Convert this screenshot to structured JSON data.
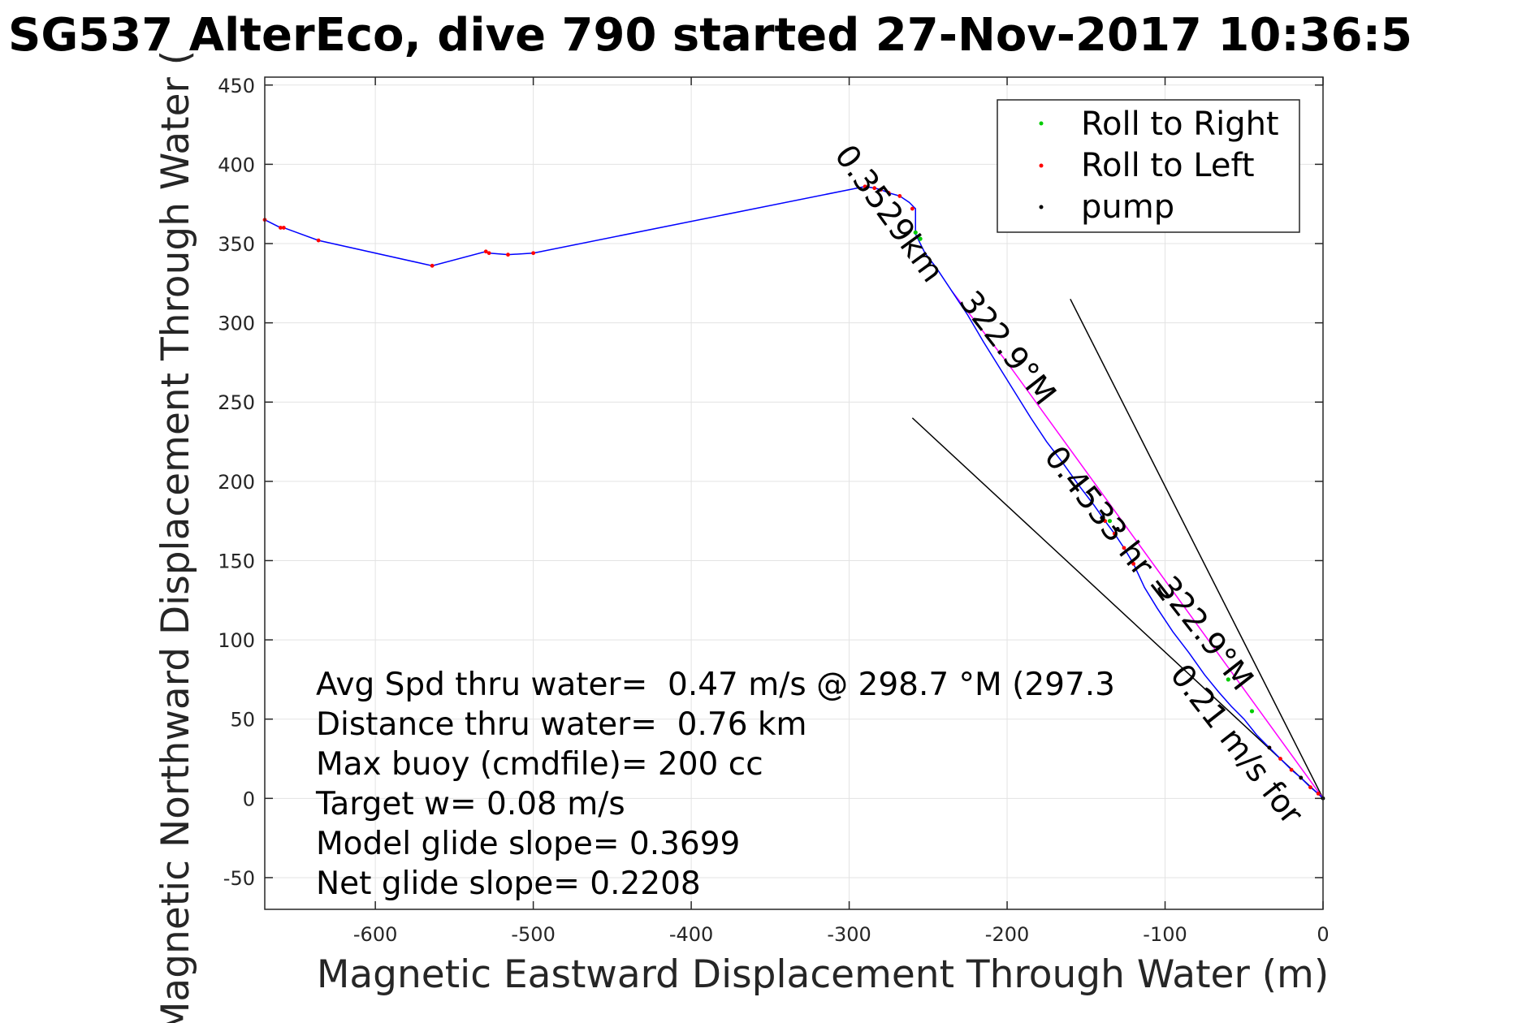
{
  "chart_data": {
    "type": "line",
    "title": "SG537 AlterEco, dive 790 started 27-Nov-2017 10:36:5",
    "xlabel": "Magnetic Eastward Displacement Through Water (m)",
    "ylabel": "Magnetic Northward Displacement Through Water (",
    "xlim": [
      -670,
      0
    ],
    "ylim": [
      -70,
      455
    ],
    "xticks": [
      -600,
      -500,
      -400,
      -300,
      -200,
      -100,
      0
    ],
    "yticks": [
      -50,
      0,
      50,
      100,
      150,
      200,
      250,
      300,
      350,
      400,
      450
    ],
    "grid": true,
    "legend": {
      "placement": "top-right",
      "entries": [
        {
          "label": "Roll to Right",
          "color": "#00cc00"
        },
        {
          "label": "Roll to Left",
          "color": "#ff0000"
        },
        {
          "label": "pump",
          "color": "#000000"
        }
      ]
    },
    "track": {
      "color": "#0000ff",
      "x": [
        0,
        -3,
        -8,
        -14,
        -20,
        -27,
        -34,
        -42,
        -50,
        -58,
        -66,
        -75,
        -85,
        -95,
        -105,
        -113,
        -120,
        -126,
        -132,
        -138,
        -145,
        -155,
        -165,
        -175,
        -185,
        -195,
        -205,
        -215,
        -225,
        -235,
        -245,
        -252,
        -256,
        -258,
        -258,
        -259,
        -262,
        -268,
        -275,
        -280,
        -284,
        -290,
        -500,
        -516,
        -528,
        -530,
        -564,
        -636,
        -658,
        -660,
        -670
      ],
      "y": [
        0,
        3,
        7,
        13,
        18,
        25,
        32,
        40,
        50,
        58,
        67,
        78,
        92,
        105,
        120,
        133,
        148,
        158,
        167,
        175,
        185,
        198,
        212,
        225,
        240,
        256,
        272,
        288,
        305,
        320,
        335,
        344,
        352,
        356,
        372,
        373,
        376,
        380,
        382,
        384,
        385,
        386,
        344,
        343,
        344,
        345,
        336,
        352,
        360,
        360,
        365
      ]
    },
    "model_track": {
      "color": "#ff00ff",
      "x": [
        0,
        -40,
        -80,
        -120,
        -160,
        -200,
        -235
      ],
      "y": [
        0,
        55,
        110,
        165,
        220,
        275,
        320
      ]
    },
    "roll_right_points": {
      "x": [
        -258,
        -255,
        -60,
        -45,
        -135
      ],
      "y": [
        357,
        353,
        75,
        55,
        175
      ]
    },
    "roll_left_points": {
      "x": [
        -3,
        -8,
        -14,
        -20,
        -27,
        -34,
        -120,
        -126,
        -132,
        -138,
        -260,
        -268,
        -275,
        -280,
        -284,
        -290,
        -500,
        -516,
        -528,
        -530,
        -564,
        -636,
        -658,
        -660,
        -670
      ],
      "y": [
        3,
        7,
        13,
        18,
        25,
        32,
        148,
        158,
        167,
        175,
        372,
        380,
        382,
        384,
        385,
        386,
        344,
        343,
        344,
        345,
        336,
        352,
        360,
        360,
        365
      ]
    },
    "pump_points": {
      "x": [
        0,
        -14,
        -34,
        -130,
        -140
      ],
      "y": [
        0,
        13,
        32,
        170,
        177
      ]
    },
    "reference_lines": [
      {
        "x": [
          0,
          -160
        ],
        "y": [
          0,
          315
        ]
      },
      {
        "x": [
          0,
          -260
        ],
        "y": [
          0,
          240
        ]
      }
    ],
    "annotations": [
      {
        "text": "0.3529km",
        "x": -280,
        "y": 365,
        "angle": 54
      },
      {
        "text": "0.4533 hr =",
        "x": -140,
        "y": 168,
        "angle": 52
      },
      {
        "text": "322.9°M",
        "x": -205,
        "y": 280,
        "angle": 52
      },
      {
        "text": "0.21 m/s for",
        "x": -60,
        "y": 30,
        "angle": 52
      },
      {
        "text": "322.9°M",
        "x": -80,
        "y": 100,
        "angle": 52
      }
    ],
    "stats": [
      "Avg Spd thru water=  0.47 m/s @ 298.7 °M (297.3",
      "Distance thru water=  0.76 km",
      "Max buoy (cmdfile)= 200 cc",
      "Target w= 0.08 m/s",
      "Model glide slope= 0.3699",
      "Net glide slope= 0.2208"
    ]
  }
}
